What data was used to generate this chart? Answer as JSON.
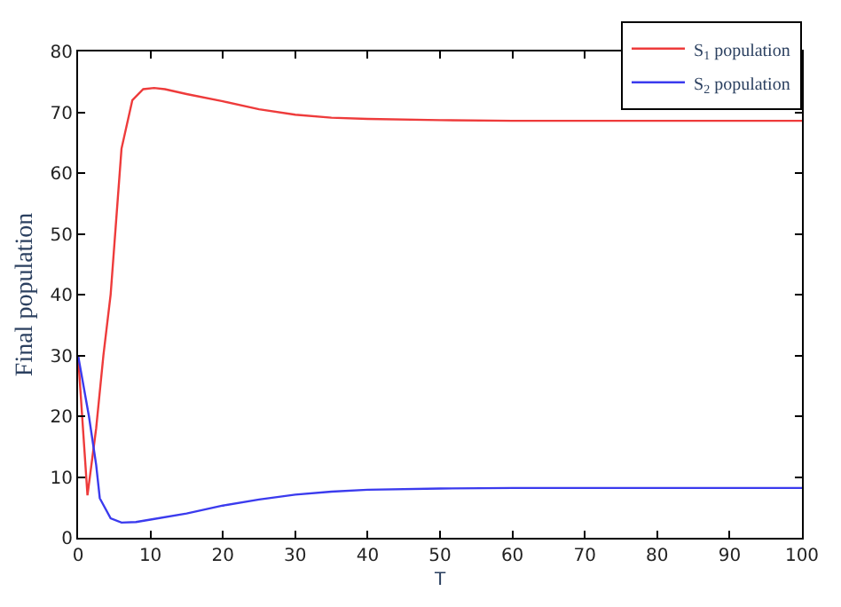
{
  "chart_data": {
    "type": "line",
    "xlabel": "T",
    "ylabel": "Final population",
    "xlim": [
      0,
      100
    ],
    "xticks": [
      0,
      10,
      20,
      30,
      40,
      50,
      60,
      70,
      80,
      90,
      100
    ],
    "ylim": [
      0,
      80
    ],
    "yticks": [
      0,
      10,
      20,
      30,
      40,
      50,
      60,
      70,
      80
    ],
    "legend": "top right",
    "marker": "none",
    "line_style": "solid",
    "series": [
      {
        "name": "S$_{1}$ population",
        "color": "#ee3b3b",
        "x": [
          0,
          1.3,
          2.5,
          3.5,
          4.5,
          6,
          7.5,
          9,
          10.5,
          12,
          15,
          20,
          25,
          30,
          35,
          40,
          50,
          60,
          70,
          80,
          90,
          100
        ],
        "values": [
          30,
          7,
          18,
          30,
          40,
          64,
          72,
          73.8,
          74,
          73.8,
          73,
          71.8,
          70.5,
          69.6,
          69.1,
          68.9,
          68.7,
          68.6,
          68.6,
          68.6,
          68.6,
          68.6
        ]
      },
      {
        "name": "S$_{2}$ population",
        "color": "#3b3bee",
        "x": [
          0,
          1.5,
          2.5,
          3,
          4.5,
          6,
          8,
          10,
          15,
          20,
          25,
          30,
          35,
          40,
          50,
          60,
          70,
          80,
          90,
          100
        ],
        "values": [
          30,
          20,
          12,
          6.5,
          3.2,
          2.5,
          2.6,
          3,
          4,
          5.3,
          6.3,
          7.1,
          7.6,
          7.9,
          8.1,
          8.2,
          8.2,
          8.2,
          8.2,
          8.2
        ]
      }
    ]
  }
}
